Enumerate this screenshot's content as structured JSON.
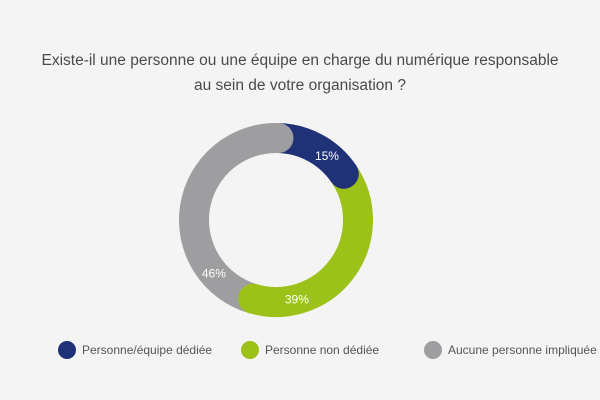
{
  "chart_data": {
    "type": "pie",
    "variant": "donut",
    "title_lines": [
      "Existe-il une personne ou une équipe en charge du numérique responsable",
      "au sein de votre organisation ?"
    ],
    "categories": [
      "Personne/équipe dédiée",
      "Personne non dédiée",
      "Aucune personne impliquée"
    ],
    "values": [
      15,
      39,
      46
    ],
    "labels": [
      "15%",
      "39%",
      "46%"
    ],
    "colors": [
      "#1f3278",
      "#9cc21a",
      "#9e9d9f"
    ],
    "legend_position": "bottom"
  }
}
